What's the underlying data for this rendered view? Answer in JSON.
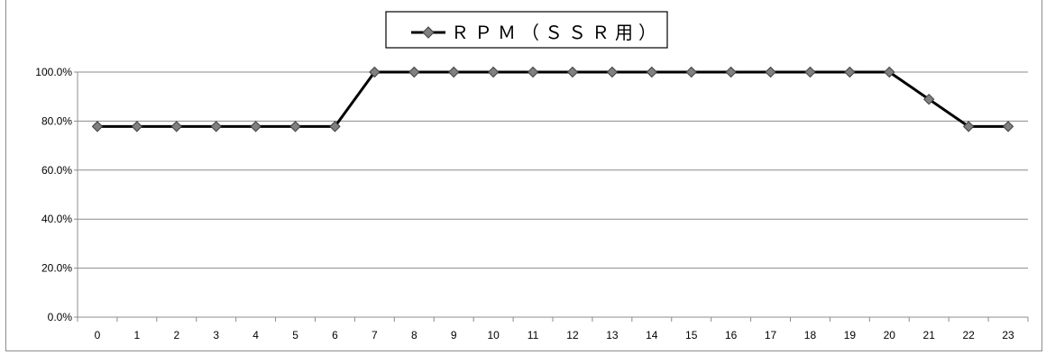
{
  "chart_data": {
    "type": "line",
    "categories": [
      "0",
      "1",
      "2",
      "3",
      "4",
      "5",
      "6",
      "7",
      "8",
      "9",
      "10",
      "11",
      "12",
      "13",
      "14",
      "15",
      "16",
      "17",
      "18",
      "19",
      "20",
      "21",
      "22",
      "23"
    ],
    "series": [
      {
        "name": "ＲＰＭ（ＳＳＲ用）",
        "values": [
          77.8,
          77.8,
          77.8,
          77.8,
          77.8,
          77.8,
          77.8,
          100,
          100,
          100,
          100,
          100,
          100,
          100,
          100,
          100,
          100,
          100,
          100,
          100,
          100,
          88.9,
          77.8,
          77.8
        ],
        "line_color": "#000000",
        "marker": "diamond",
        "marker_color": "#808080"
      }
    ],
    "title": "",
    "xlabel": "",
    "ylabel": "",
    "ylim": [
      0,
      100
    ],
    "yticks": [
      "0.0%",
      "20.0%",
      "40.0%",
      "60.0%",
      "80.0%",
      "100.0%"
    ],
    "y_tick_values": [
      0,
      20,
      40,
      60,
      80,
      100
    ],
    "grid": true,
    "legend_position": "top-center"
  }
}
